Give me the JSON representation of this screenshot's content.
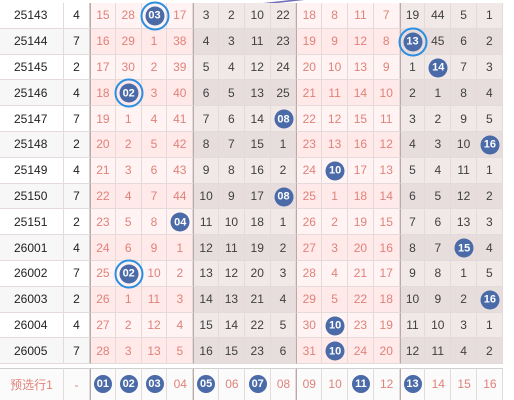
{
  "colors": {
    "ball": "#4a6aa8",
    "line": "#6f6fb8",
    "ring": "#2b8ee0",
    "miss_text": "#e0827a"
  },
  "rows": [
    {
      "issue": "25143",
      "sum": "4",
      "cells": [
        "15",
        "28",
        "03",
        "17",
        "3",
        "2",
        "10",
        "22",
        "18",
        "8",
        "11",
        "7",
        "19",
        "44",
        "5",
        "1"
      ],
      "hit": 2,
      "ring": true
    },
    {
      "issue": "25144",
      "sum": "7",
      "cells": [
        "16",
        "29",
        "1",
        "38",
        "4",
        "3",
        "11",
        "23",
        "19",
        "9",
        "12",
        "8",
        "13",
        "45",
        "6",
        "2"
      ],
      "hit": 12,
      "ring": true
    },
    {
      "issue": "25145",
      "sum": "2",
      "cells": [
        "17",
        "30",
        "2",
        "39",
        "5",
        "4",
        "12",
        "24",
        "20",
        "10",
        "13",
        "9",
        "1",
        "14",
        "7",
        "3"
      ],
      "hit": 13,
      "ring": false
    },
    {
      "issue": "25146",
      "sum": "4",
      "cells": [
        "18",
        "02",
        "3",
        "40",
        "6",
        "5",
        "13",
        "25",
        "21",
        "11",
        "14",
        "10",
        "2",
        "1",
        "8",
        "4"
      ],
      "hit": 1,
      "ring": true
    },
    {
      "issue": "25147",
      "sum": "7",
      "cells": [
        "19",
        "1",
        "4",
        "41",
        "7",
        "6",
        "14",
        "08",
        "22",
        "12",
        "15",
        "11",
        "3",
        "2",
        "9",
        "5"
      ],
      "hit": 7,
      "ring": false
    },
    {
      "issue": "25148",
      "sum": "2",
      "cells": [
        "20",
        "2",
        "5",
        "42",
        "8",
        "7",
        "15",
        "1",
        "23",
        "13",
        "16",
        "12",
        "4",
        "3",
        "10",
        "16"
      ],
      "hit": 15,
      "ring": false
    },
    {
      "issue": "25149",
      "sum": "4",
      "cells": [
        "21",
        "3",
        "6",
        "43",
        "9",
        "8",
        "16",
        "2",
        "24",
        "10",
        "17",
        "13",
        "5",
        "4",
        "11",
        "1"
      ],
      "hit": 9,
      "ring": false
    },
    {
      "issue": "25150",
      "sum": "7",
      "cells": [
        "22",
        "4",
        "7",
        "44",
        "10",
        "9",
        "17",
        "08",
        "25",
        "1",
        "18",
        "14",
        "6",
        "5",
        "12",
        "2"
      ],
      "hit": 7,
      "ring": false
    },
    {
      "issue": "25151",
      "sum": "2",
      "cells": [
        "23",
        "5",
        "8",
        "04",
        "11",
        "10",
        "18",
        "1",
        "26",
        "2",
        "19",
        "15",
        "7",
        "6",
        "13",
        "3"
      ],
      "hit": 3,
      "ring": false
    },
    {
      "issue": "26001",
      "sum": "4",
      "cells": [
        "24",
        "6",
        "9",
        "1",
        "12",
        "11",
        "19",
        "2",
        "27",
        "3",
        "20",
        "16",
        "8",
        "7",
        "15",
        "4"
      ],
      "hit": 14,
      "ring": false
    },
    {
      "issue": "26002",
      "sum": "7",
      "cells": [
        "25",
        "02",
        "10",
        "2",
        "13",
        "12",
        "20",
        "3",
        "28",
        "4",
        "21",
        "17",
        "9",
        "8",
        "1",
        "5"
      ],
      "hit": 1,
      "ring": true
    },
    {
      "issue": "26003",
      "sum": "2",
      "cells": [
        "26",
        "1",
        "11",
        "3",
        "14",
        "13",
        "21",
        "4",
        "29",
        "5",
        "22",
        "18",
        "10",
        "9",
        "2",
        "16"
      ],
      "hit": 15,
      "ring": false
    },
    {
      "issue": "26004",
      "sum": "4",
      "cells": [
        "27",
        "2",
        "12",
        "4",
        "15",
        "14",
        "22",
        "5",
        "30",
        "10",
        "23",
        "19",
        "11",
        "10",
        "3",
        "1"
      ],
      "hit": 9,
      "ring": false
    },
    {
      "issue": "26005",
      "sum": "7",
      "cells": [
        "28",
        "3",
        "13",
        "5",
        "16",
        "15",
        "23",
        "6",
        "31",
        "10",
        "24",
        "20",
        "12",
        "11",
        "4",
        "2"
      ],
      "hit": 9,
      "ring": false
    }
  ],
  "footer": {
    "label": "预选行1",
    "dash": "-",
    "items": [
      {
        "num": "01",
        "ball": true
      },
      {
        "num": "02",
        "ball": true
      },
      {
        "num": "03",
        "ball": true
      },
      {
        "num": "04",
        "ball": false
      },
      {
        "num": "05",
        "ball": true
      },
      {
        "num": "06",
        "ball": false
      },
      {
        "num": "07",
        "ball": true
      },
      {
        "num": "08",
        "ball": false
      },
      {
        "num": "09",
        "ball": false
      },
      {
        "num": "10",
        "ball": false
      },
      {
        "num": "11",
        "ball": true
      },
      {
        "num": "12",
        "ball": false
      },
      {
        "num": "13",
        "ball": true
      },
      {
        "num": "14",
        "ball": false
      },
      {
        "num": "15",
        "ball": false
      },
      {
        "num": "16",
        "ball": false
      }
    ]
  }
}
